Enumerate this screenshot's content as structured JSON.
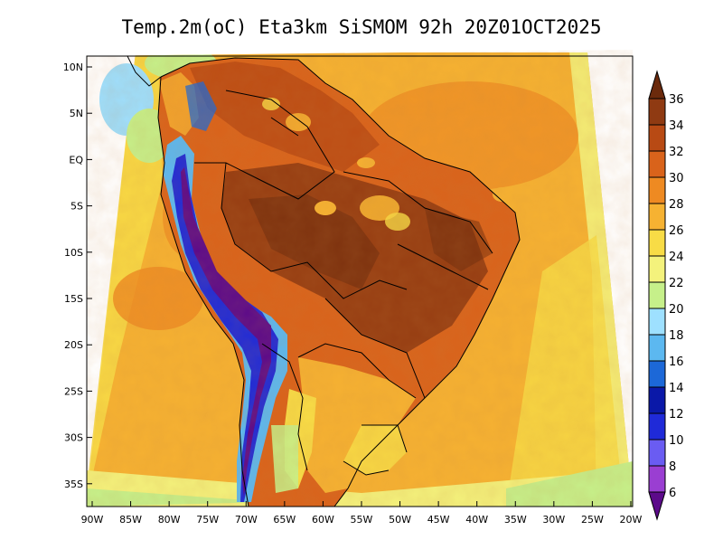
{
  "title": "Temp.2m(oC) Eta3km SiSMOM 92h 20Z01OCT2025",
  "lat_ticks": [
    "10N",
    "5N",
    "EQ",
    "5S",
    "10S",
    "15S",
    "20S",
    "25S",
    "30S",
    "35S"
  ],
  "lon_ticks": [
    "90W",
    "85W",
    "80W",
    "75W",
    "70W",
    "65W",
    "60W",
    "55W",
    "50W",
    "45W",
    "40W",
    "35W",
    "30W",
    "25W",
    "20W"
  ],
  "colorbar": {
    "levels": [
      "36",
      "34",
      "32",
      "30",
      "28",
      "26",
      "24",
      "22",
      "20",
      "18",
      "16",
      "14",
      "12",
      "10",
      "8",
      "6"
    ],
    "colors_top_to_bottom": [
      "#6b2a0c",
      "#8f3a12",
      "#b84a14",
      "#d9631b",
      "#ee8a22",
      "#f6b232",
      "#f8dc46",
      "#f4f27c",
      "#c6f08a",
      "#9ee0ff",
      "#5cb8f0",
      "#1c68d8",
      "#0a18a8",
      "#1f2ad8",
      "#6a5cf2",
      "#9a3ed2",
      "#5c0a8a"
    ]
  }
}
